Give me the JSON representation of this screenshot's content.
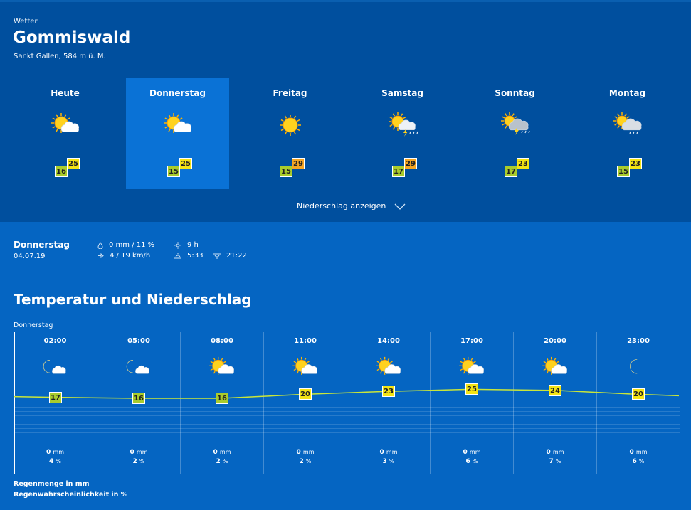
{
  "header": {
    "label": "Wetter",
    "city": "Gommiswald",
    "region": "Sankt Gallen, 584 m ü. M."
  },
  "days": [
    {
      "name": "Heute",
      "icon": "sun-cloud-icon",
      "min": "16",
      "max": "25",
      "max_color": "yellow",
      "selected": false
    },
    {
      "name": "Donnerstag",
      "icon": "sun-cloud-icon",
      "min": "15",
      "max": "25",
      "max_color": "yellow",
      "selected": true
    },
    {
      "name": "Freitag",
      "icon": "sun-icon",
      "min": "15",
      "max": "29",
      "max_color": "orange",
      "selected": false
    },
    {
      "name": "Samstag",
      "icon": "sun-cloud-thunder-icon",
      "min": "17",
      "max": "29",
      "max_color": "orange",
      "selected": false
    },
    {
      "name": "Sonntag",
      "icon": "cloud-thunder-icon",
      "min": "17",
      "max": "23",
      "max_color": "yellow",
      "selected": false
    },
    {
      "name": "Montag",
      "icon": "sun-cloud-rain-icon",
      "min": "15",
      "max": "23",
      "max_color": "yellow",
      "selected": false
    }
  ],
  "precip_toggle": "Niederschlag anzeigen",
  "detail": {
    "day": "Donnerstag",
    "date": "04.07.19",
    "precip": "0 mm / 11 %",
    "wind": "4 / 19 km/h",
    "sunshine": "9 h",
    "sunrise": "5:33",
    "sunset": "21:22"
  },
  "chart_title": "Temperatur und Niederschlag",
  "chart_day": "Donnerstag",
  "hourly": [
    {
      "time": "02:00",
      "icon": "moon-cloud-icon",
      "temp": "17",
      "mm": "0",
      "pct": "4"
    },
    {
      "time": "05:00",
      "icon": "moon-cloud-icon",
      "temp": "16",
      "mm": "0",
      "pct": "2"
    },
    {
      "time": "08:00",
      "icon": "sun-cloud-icon",
      "temp": "16",
      "mm": "0",
      "pct": "2"
    },
    {
      "time": "11:00",
      "icon": "sun-cloud-icon",
      "temp": "20",
      "mm": "0",
      "pct": "2"
    },
    {
      "time": "14:00",
      "icon": "sun-cloud-icon",
      "temp": "23",
      "mm": "0",
      "pct": "3"
    },
    {
      "time": "17:00",
      "icon": "sun-cloud-icon",
      "temp": "25",
      "mm": "0",
      "pct": "6"
    },
    {
      "time": "20:00",
      "icon": "sun-cloud-icon",
      "temp": "24",
      "mm": "0",
      "pct": "7"
    },
    {
      "time": "23:00",
      "icon": "moon-icon",
      "temp": "20",
      "mm": "0",
      "pct": "6"
    }
  ],
  "units": {
    "mm": "mm",
    "pct": "%"
  },
  "legend": {
    "rain": "Regenmenge in mm",
    "prob": "Regenwahrscheinlichkeit in %"
  },
  "colors": {
    "header_bg": "#004f9e",
    "page_bg": "#0565c2",
    "selected_day": "#0a72d6",
    "temp_line": "#c9e63a",
    "badge_green": "#a9cc2c",
    "badge_yellow": "#f4e414",
    "badge_orange": "#f6a623"
  }
}
